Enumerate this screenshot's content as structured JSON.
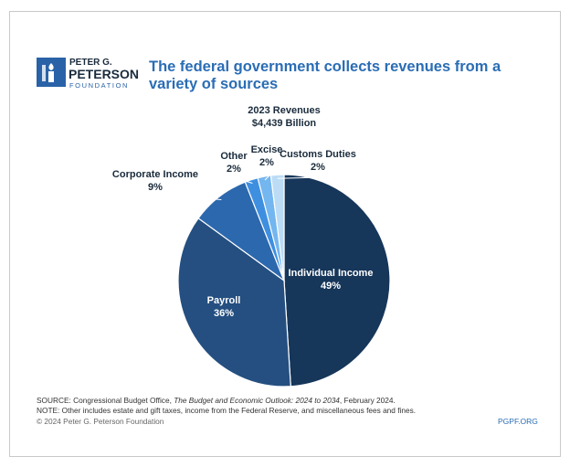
{
  "logo": {
    "line1": "PETER G.",
    "line2": "PETERSON",
    "line3": "FOUNDATION"
  },
  "chart_data": {
    "type": "pie",
    "title": "The federal government collects revenues from a variety of sources",
    "subtitle": [
      "2023 Revenues",
      "$4,439 Billion"
    ],
    "categories": [
      "Individual Income",
      "Payroll",
      "Corporate Income",
      "Other",
      "Excise",
      "Customs Duties"
    ],
    "values": [
      49,
      36,
      9,
      2,
      2,
      2
    ],
    "value_labels": [
      "49%",
      "36%",
      "9%",
      "2%",
      "2%",
      "2%"
    ],
    "colors": [
      "#16365a",
      "#244f80",
      "#2c68ad",
      "#3f8fe0",
      "#74b6ef",
      "#bcdcf6"
    ]
  },
  "footer": {
    "source": [
      "SOURCE: Congressional Budget Office, ",
      "The Budget and Economic Outlook: 2024 to 2034",
      ", February 2024."
    ],
    "note": "NOTE: Other includes estate and gift taxes, income from the Federal Reserve, and miscellaneous fees and fines.",
    "copyright": "© 2024 Peter G. Peterson Foundation",
    "url": "PGPF.ORG"
  }
}
